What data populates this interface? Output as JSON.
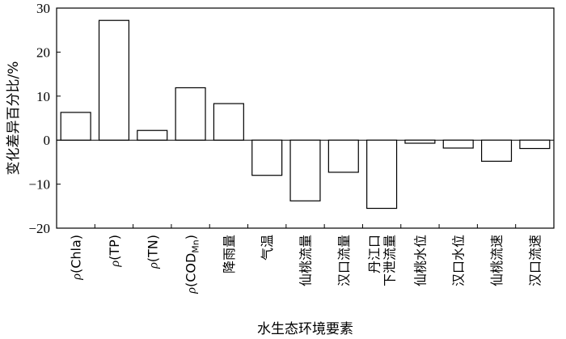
{
  "chart_data": {
    "type": "bar",
    "xlabel": "水生态环境要素",
    "ylabel": "变化差异百分比/%",
    "ylim": [
      -20,
      30
    ],
    "yticks": [
      -20,
      -10,
      0,
      10,
      20,
      30
    ],
    "grid": false,
    "categories": [
      {
        "lines": [
          {
            "rho": "ρ",
            "text": "(Chla)"
          }
        ]
      },
      {
        "lines": [
          {
            "rho": "ρ",
            "text": "(TP)"
          }
        ]
      },
      {
        "lines": [
          {
            "rho": "ρ",
            "text": "(TN)"
          }
        ]
      },
      {
        "lines": [
          {
            "rho": "ρ",
            "text": "(COD",
            "sub": "Mn",
            "tail": ")"
          }
        ]
      },
      {
        "lines": [
          {
            "text": "降雨量"
          }
        ]
      },
      {
        "lines": [
          {
            "text": "气温"
          }
        ]
      },
      {
        "lines": [
          {
            "text": "仙桃流量"
          }
        ]
      },
      {
        "lines": [
          {
            "text": "汉口流量"
          }
        ]
      },
      {
        "lines": [
          {
            "text": "丹江口"
          },
          {
            "text": "下泄流量"
          }
        ]
      },
      {
        "lines": [
          {
            "text": "仙桃水位"
          }
        ]
      },
      {
        "lines": [
          {
            "text": "汉口水位"
          }
        ]
      },
      {
        "lines": [
          {
            "text": "仙桃流速"
          }
        ]
      },
      {
        "lines": [
          {
            "text": "汉口流速"
          }
        ]
      }
    ],
    "values": [
      6.3,
      27.2,
      2.2,
      11.9,
      8.3,
      -8.0,
      -13.8,
      -7.3,
      -15.5,
      -0.7,
      -1.8,
      -4.8,
      -1.9
    ]
  }
}
